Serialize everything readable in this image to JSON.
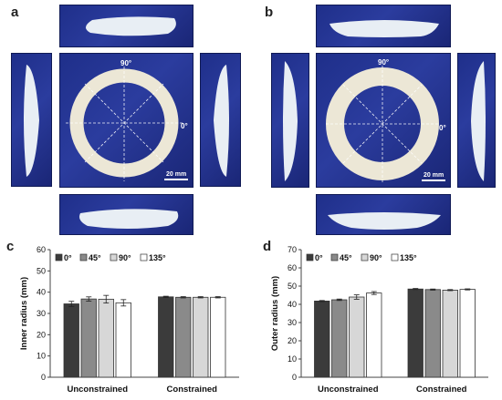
{
  "panels": {
    "a": "a",
    "b": "b",
    "c": "c",
    "d": "d"
  },
  "photo_labels": {
    "angle_90": "90°",
    "angle_0": "0°",
    "scale_bar": "20 mm"
  },
  "colors": {
    "photo_bg": "#24348f",
    "ring": "#ece7d6",
    "series": [
      "#3b3b3b",
      "#8a8a8a",
      "#d7d7d7",
      "#ffffff"
    ]
  },
  "chart_data": [
    {
      "type": "bar",
      "panel": "c",
      "ylabel": "Inner radius (mm)",
      "ylim": [
        0,
        60
      ],
      "yticks": [
        0,
        10,
        20,
        30,
        40,
        50,
        60
      ],
      "categories": [
        "Unconstrained",
        "Constrained"
      ],
      "legend_position": "top-left",
      "grid": false,
      "series": [
        {
          "name": "0°",
          "values": [
            34.5,
            37.8
          ],
          "errors": [
            1.2,
            0.3
          ]
        },
        {
          "name": "45°",
          "values": [
            36.8,
            37.6
          ],
          "errors": [
            1.0,
            0.3
          ]
        },
        {
          "name": "90°",
          "values": [
            36.7,
            37.6
          ],
          "errors": [
            1.8,
            0.3
          ]
        },
        {
          "name": "135°",
          "values": [
            35.0,
            37.6
          ],
          "errors": [
            1.5,
            0.3
          ]
        }
      ]
    },
    {
      "type": "bar",
      "panel": "d",
      "ylabel": "Outer radius (mm)",
      "ylim": [
        0,
        70
      ],
      "yticks": [
        0,
        10,
        20,
        30,
        40,
        50,
        60,
        70
      ],
      "categories": [
        "Unconstrained",
        "Constrained"
      ],
      "legend_position": "top-left",
      "grid": false,
      "series": [
        {
          "name": "0°",
          "values": [
            41.8,
            48.4
          ],
          "errors": [
            0.3,
            0.3
          ]
        },
        {
          "name": "45°",
          "values": [
            42.5,
            48.1
          ],
          "errors": [
            0.4,
            0.3
          ]
        },
        {
          "name": "90°",
          "values": [
            44.0,
            47.8
          ],
          "errors": [
            1.2,
            0.3
          ]
        },
        {
          "name": "135°",
          "values": [
            46.2,
            48.2
          ],
          "errors": [
            0.8,
            0.3
          ]
        }
      ]
    }
  ]
}
